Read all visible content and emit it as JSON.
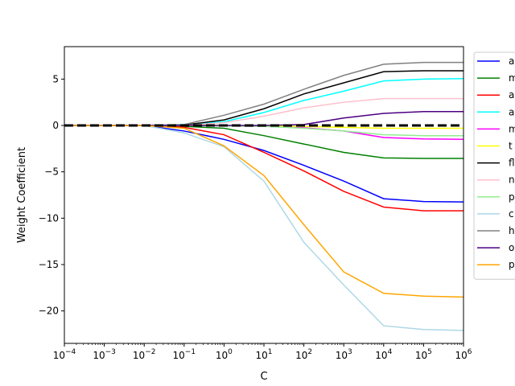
{
  "chart_data": {
    "type": "line",
    "xlabel": "C",
    "ylabel": "Weight Coefficient",
    "xscale": "log",
    "xlim": [
      0.0001,
      1000000
    ],
    "ylim": [
      -23.5,
      8.5
    ],
    "x_tick_values": [
      0.0001,
      0.001,
      0.01,
      0.1,
      1,
      10,
      100,
      1000,
      10000,
      100000,
      1000000
    ],
    "x_tick_labels": [
      {
        "base": "10",
        "exp": "−4"
      },
      {
        "base": "10",
        "exp": "−3"
      },
      {
        "base": "10",
        "exp": "−2"
      },
      {
        "base": "10",
        "exp": "−1"
      },
      {
        "base": "10",
        "exp": "0"
      },
      {
        "base": "10",
        "exp": "1"
      },
      {
        "base": "10",
        "exp": "2"
      },
      {
        "base": "10",
        "exp": "3"
      },
      {
        "base": "10",
        "exp": "4"
      },
      {
        "base": "10",
        "exp": "5"
      },
      {
        "base": "10",
        "exp": "6"
      }
    ],
    "y_tick_values": [
      5,
      0,
      -5,
      -10,
      -15,
      -20
    ],
    "y_tick_labels": [
      "5",
      "0",
      "−5",
      "−10",
      "−15",
      "−20"
    ],
    "grid": false,
    "legend_placement": "outside-right",
    "baseline": {
      "y": 0,
      "color": "#000000",
      "style": "dashed"
    },
    "x": [
      0.0001,
      0.001,
      0.01,
      0.1,
      1,
      10,
      100,
      1000,
      10000,
      100000,
      1000000
    ],
    "series": [
      {
        "name": "a",
        "color": "#0000ff",
        "values": [
          0,
          0,
          0,
          -0.6,
          -1.5,
          -2.7,
          -4.3,
          -6.0,
          -7.9,
          -8.2,
          -8.25
        ]
      },
      {
        "name": "m",
        "color": "#008000",
        "values": [
          0,
          0,
          0,
          -0.1,
          -0.3,
          -1.1,
          -2.0,
          -2.9,
          -3.5,
          -3.55,
          -3.55
        ]
      },
      {
        "name": "a",
        "color": "#ff0000",
        "values": [
          0,
          0,
          0,
          -0.2,
          -1.0,
          -2.9,
          -4.9,
          -7.1,
          -8.8,
          -9.2,
          -9.2
        ]
      },
      {
        "name": "a",
        "color": "#00ffff",
        "values": [
          0,
          0,
          0,
          0.1,
          0.4,
          1.4,
          2.7,
          3.7,
          4.8,
          5.0,
          5.05
        ]
      },
      {
        "name": "m",
        "color": "#ff00ff",
        "values": [
          0,
          0,
          0,
          0,
          -0.05,
          -0.1,
          -0.25,
          -0.6,
          -1.3,
          -1.45,
          -1.5
        ]
      },
      {
        "name": "t",
        "color": "#ffff00",
        "values": [
          0,
          0,
          0,
          0,
          0,
          -0.05,
          -0.1,
          -0.2,
          -0.3,
          -0.3,
          -0.3
        ]
      },
      {
        "name": "fl",
        "color": "#000000",
        "values": [
          0,
          0,
          0,
          0.05,
          0.6,
          1.8,
          3.4,
          4.6,
          5.8,
          5.9,
          5.9
        ]
      },
      {
        "name": "n",
        "color": "#ffc0cb",
        "values": [
          0,
          0,
          0,
          0,
          0.3,
          1.0,
          1.9,
          2.5,
          2.9,
          2.9,
          2.9
        ]
      },
      {
        "name": "p",
        "color": "#90ee90",
        "values": [
          0,
          0,
          0,
          0,
          -0.05,
          -0.1,
          -0.3,
          -0.6,
          -1.0,
          -1.1,
          -1.1
        ]
      },
      {
        "name": "c",
        "color": "#add8e6",
        "values": [
          0,
          0,
          0,
          -0.8,
          -2.3,
          -6.0,
          -12.6,
          -17.2,
          -21.6,
          -22.0,
          -22.1
        ]
      },
      {
        "name": "h",
        "color": "#808080",
        "values": [
          0,
          0,
          0,
          0.1,
          1.1,
          2.3,
          3.9,
          5.4,
          6.6,
          6.8,
          6.8
        ]
      },
      {
        "name": "o",
        "color": "#4b0082",
        "values": [
          0,
          0,
          0,
          0,
          0,
          0,
          0.1,
          0.8,
          1.3,
          1.5,
          1.5
        ]
      },
      {
        "name": "p",
        "color": "#ffa500",
        "values": [
          0,
          0,
          0,
          -0.3,
          -2.2,
          -5.4,
          -10.7,
          -15.8,
          -18.1,
          -18.4,
          -18.5
        ]
      }
    ]
  }
}
